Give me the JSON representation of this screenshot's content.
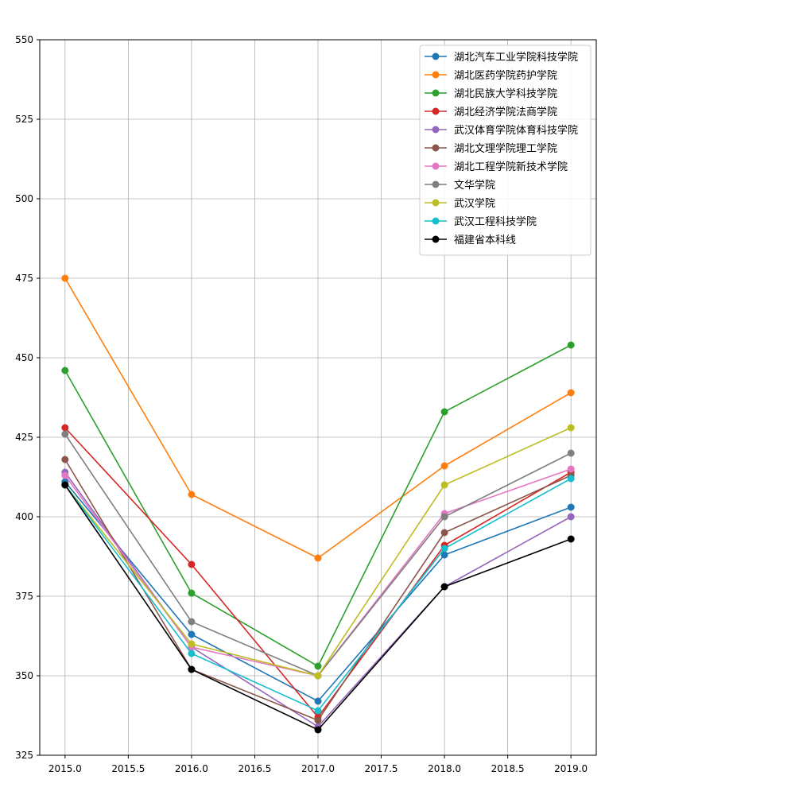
{
  "chart_data": {
    "type": "line",
    "title": "",
    "xlabel": "",
    "ylabel": "",
    "x": [
      2015,
      2016,
      2017,
      2018,
      2019
    ],
    "xlim": [
      2014.8,
      2019.2
    ],
    "ylim": [
      325,
      550
    ],
    "xticks": [
      "2015.0",
      "2015.5",
      "2016.0",
      "2016.5",
      "2017.0",
      "2017.5",
      "2018.0",
      "2018.5",
      "2019.0"
    ],
    "xtick_values": [
      2015.0,
      2015.5,
      2016.0,
      2016.5,
      2017.0,
      2017.5,
      2018.0,
      2018.5,
      2019.0
    ],
    "yticks": [
      "325",
      "350",
      "375",
      "400",
      "425",
      "450",
      "475",
      "500",
      "525",
      "550"
    ],
    "ytick_values": [
      325,
      350,
      375,
      400,
      425,
      450,
      475,
      500,
      525,
      550
    ],
    "grid": true,
    "legend_position": "top-right",
    "series": [
      {
        "name": "湖北汽车工业学院科技学院",
        "color": "#1f77b4",
        "values": [
          411,
          363,
          342,
          388,
          403
        ]
      },
      {
        "name": "湖北医药学院药护学院",
        "color": "#ff7f0e",
        "values": [
          475,
          407,
          387,
          416,
          439
        ]
      },
      {
        "name": "湖北民族大学科技学院",
        "color": "#2ca02c",
        "values": [
          446,
          376,
          353,
          433,
          454
        ]
      },
      {
        "name": "湖北经济学院法商学院",
        "color": "#d62728",
        "values": [
          428,
          385,
          337,
          391,
          414
        ]
      },
      {
        "name": "武汉体育学院体育科技学院",
        "color": "#9467bd",
        "values": [
          414,
          359,
          334,
          378,
          400
        ]
      },
      {
        "name": "湖北文理学院理工学院",
        "color": "#8c564b",
        "values": [
          418,
          352,
          336,
          395,
          413
        ]
      },
      {
        "name": "湖北工程学院新技术学院",
        "color": "#e377c2",
        "values": [
          413,
          359,
          350,
          401,
          415
        ]
      },
      {
        "name": "文华学院",
        "color": "#7f7f7f",
        "values": [
          426,
          367,
          350,
          400,
          420
        ]
      },
      {
        "name": "武汉学院",
        "color": "#bcbd22",
        "values": [
          410,
          360,
          350,
          410,
          428
        ]
      },
      {
        "name": "武汉工程科技学院",
        "color": "#17becf",
        "values": [
          410,
          357,
          339,
          390,
          412
        ]
      },
      {
        "name": "福建省本科线",
        "color": "#000000",
        "values": [
          410,
          352,
          333,
          378,
          393
        ]
      }
    ]
  }
}
